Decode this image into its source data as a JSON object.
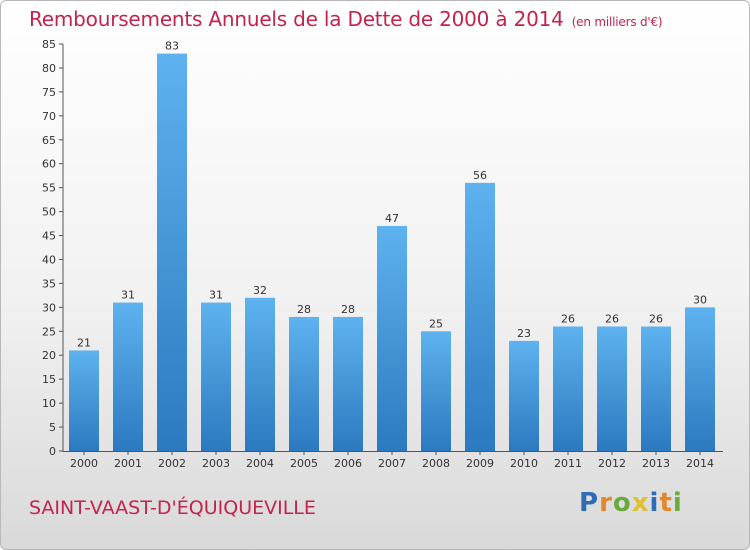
{
  "chart_data": {
    "type": "bar",
    "title": "Remboursements Annuels de la Dette de 2000 à 2014",
    "unit_label": "(en milliers d'€)",
    "categories": [
      "2000",
      "2001",
      "2002",
      "2003",
      "2004",
      "2005",
      "2006",
      "2007",
      "2008",
      "2009",
      "2010",
      "2011",
      "2012",
      "2013",
      "2014"
    ],
    "values": [
      21,
      31,
      83,
      31,
      32,
      28,
      28,
      47,
      25,
      56,
      23,
      26,
      26,
      26,
      30
    ],
    "ylim": [
      0,
      85
    ],
    "yticks": [
      0,
      5,
      10,
      15,
      20,
      25,
      30,
      35,
      40,
      45,
      50,
      55,
      60,
      65,
      70,
      75,
      80,
      85
    ],
    "grid": false,
    "bar_color": "#3a8fd6",
    "xlabel": "",
    "ylabel": ""
  },
  "footer": {
    "city": "SAINT-VAAST-D'ÉQUIQUEVILLE",
    "brand": {
      "text": "Proxiti",
      "letters": [
        {
          "ch": "P",
          "color": "#2e6db5"
        },
        {
          "ch": "r",
          "color": "#e2872a"
        },
        {
          "ch": "o",
          "color": "#6aa93a"
        },
        {
          "ch": "x",
          "color": "#e0c12b"
        },
        {
          "ch": "i",
          "color": "#2e6db5"
        },
        {
          "ch": "t",
          "color": "#e2872a"
        },
        {
          "ch": "i",
          "color": "#6aa93a"
        }
      ]
    }
  }
}
